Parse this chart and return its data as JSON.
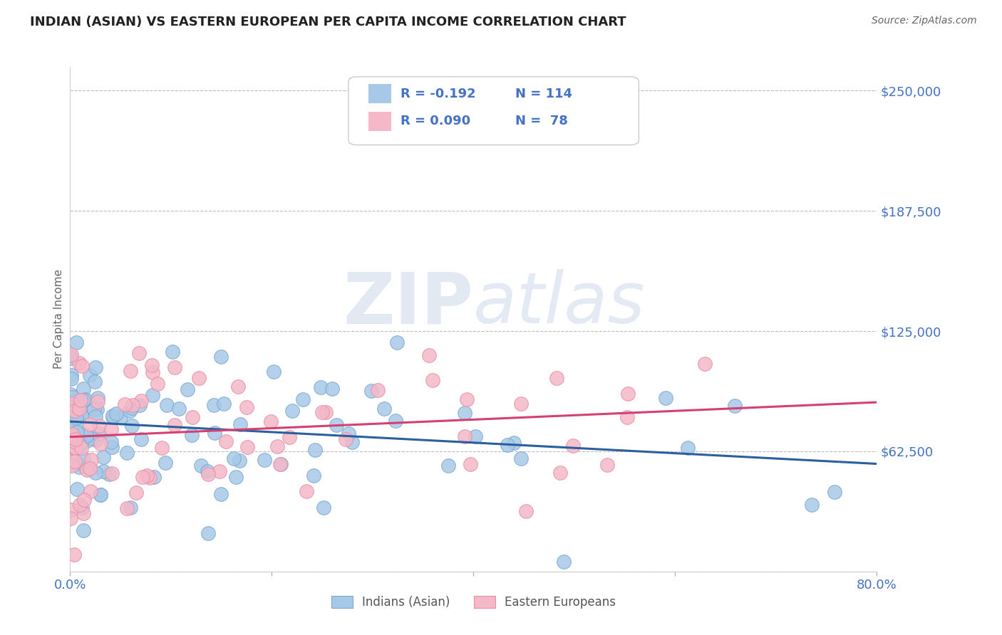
{
  "title": "INDIAN (ASIAN) VS EASTERN EUROPEAN PER CAPITA INCOME CORRELATION CHART",
  "source": "Source: ZipAtlas.com",
  "ylabel": "Per Capita Income",
  "xlim": [
    0.0,
    0.8
  ],
  "ylim": [
    0,
    262500
  ],
  "xticks": [
    0.0,
    0.2,
    0.4,
    0.6,
    0.8
  ],
  "xtick_labels": [
    "0.0%",
    "",
    "",
    "",
    "80.0%"
  ],
  "yticks": [
    0,
    62500,
    125000,
    187500,
    250000
  ],
  "ytick_labels": [
    "",
    "$62,500",
    "$125,000",
    "$187,500",
    "$250,000"
  ],
  "blue_color": "#a8c8e8",
  "blue_edge_color": "#7aaad0",
  "pink_color": "#f4b8c8",
  "pink_edge_color": "#e890a8",
  "blue_line_color": "#2c5f9e",
  "pink_line_color": "#d44070",
  "legend_R_blue": "R = -0.192",
  "legend_N_blue": "N = 114",
  "legend_R_pink": "R = 0.090",
  "legend_N_pink": "N =  78",
  "legend_label_blue": "Indians (Asian)",
  "legend_label_pink": "Eastern Europeans",
  "watermark_zip": "ZIP",
  "watermark_atlas": "atlas",
  "blue_intercept": 78000,
  "blue_slope": -22000,
  "pink_intercept": 70000,
  "pink_slope": 18000,
  "grid_color": "#bbbbbb",
  "background_color": "#ffffff",
  "axis_label_color": "#666666",
  "tick_color": "#4472c4",
  "title_fontsize": 13,
  "source_fontsize": 10
}
